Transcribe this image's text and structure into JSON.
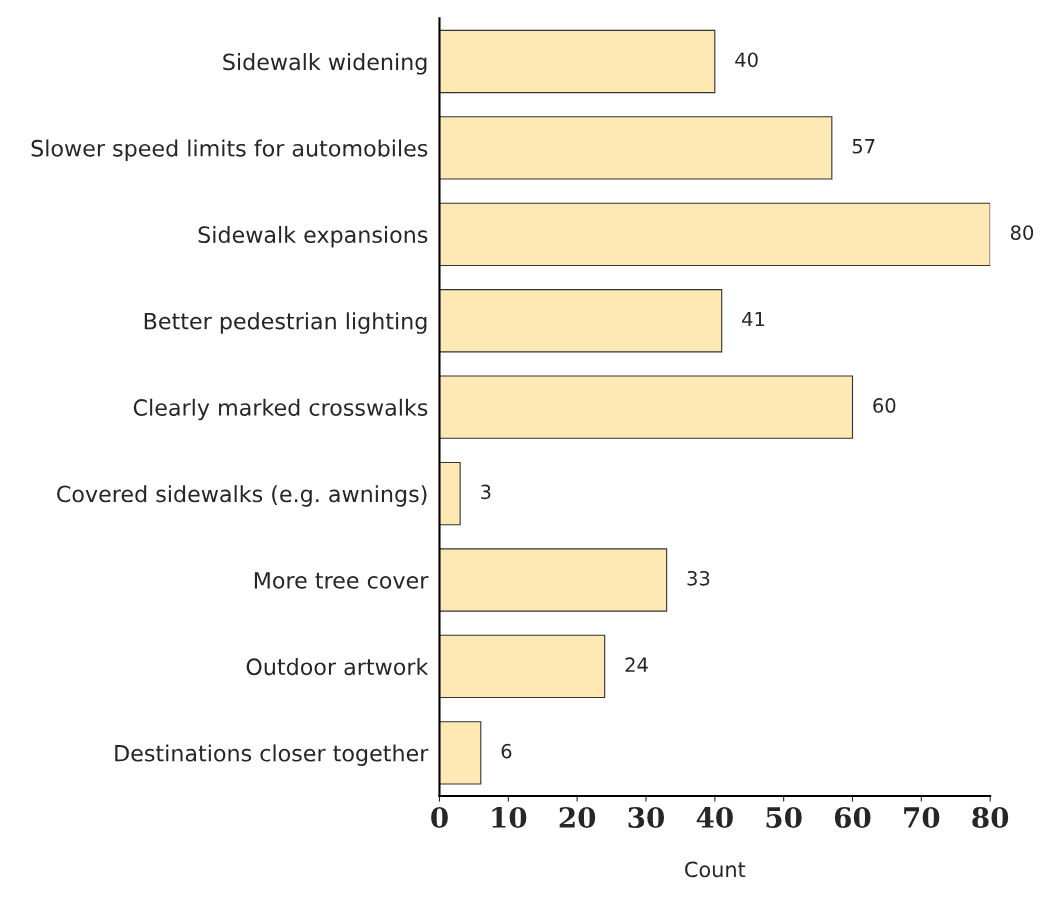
{
  "chart_data": {
    "type": "bar",
    "orientation": "horizontal",
    "xlabel": "Count",
    "categories": [
      "Sidewalk widening",
      "Slower speed limits for automobiles",
      "Sidewalk expansions",
      "Better pedestrian lighting",
      "Clearly marked crosswalks",
      "Covered sidewalks (e.g. awnings)",
      "More tree cover",
      "Outdoor artwork",
      "Destinations closer together"
    ],
    "values": [
      40,
      57,
      80,
      41,
      60,
      3,
      33,
      24,
      6
    ],
    "color": "#fee8b4",
    "xlim": [
      0,
      80
    ],
    "xticks": [
      0,
      10,
      20,
      30,
      40,
      50,
      60,
      70,
      80
    ],
    "data_labels": true,
    "grid": false,
    "legend": false
  }
}
